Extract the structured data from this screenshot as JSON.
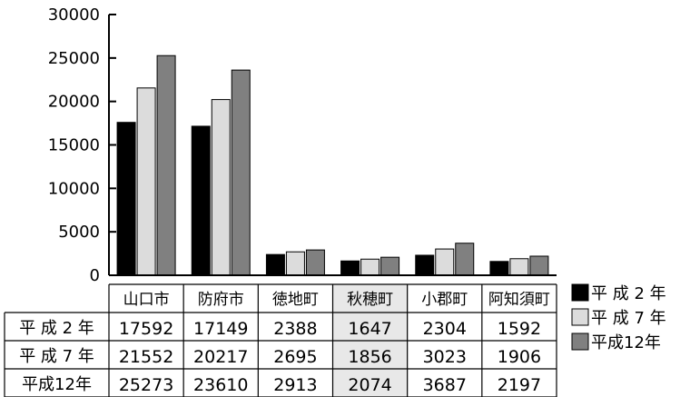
{
  "chart_data": {
    "type": "bar",
    "categories": [
      "山口市",
      "防府市",
      "徳地町",
      "秋穂町",
      "小郡町",
      "阿知須町"
    ],
    "series": [
      {
        "name": "平 成 2 年",
        "values": [
          17592,
          17149,
          2388,
          1647,
          2304,
          1592
        ],
        "color": "#000000"
      },
      {
        "name": "平 成 7 年",
        "values": [
          21552,
          20217,
          2695,
          1856,
          3023,
          1906
        ],
        "color": "#dcdcdc"
      },
      {
        "name": "平成12年",
        "values": [
          25273,
          23610,
          2913,
          2074,
          3687,
          2197
        ],
        "color": "#808080"
      }
    ],
    "table_row_labels": [
      "平 成 2 年",
      "平 成 7 年",
      "平成12年"
    ],
    "table_values": [
      [
        "17592",
        "17149",
        "2388",
        "1647",
        "2304",
        "1592"
      ],
      [
        "21552",
        "20217",
        "2695",
        "1856",
        "3023",
        "1906"
      ],
      [
        "25273",
        "23610",
        "2913",
        "2074",
        "3687",
        "2197"
      ]
    ],
    "highlighted_category": "秋穂町",
    "highlight_color": "#e8e8e8",
    "y_ticks": [
      "0",
      "5000",
      "10000",
      "15000",
      "20000",
      "25000",
      "30000"
    ],
    "ylim": [
      0,
      30000
    ],
    "legend_position": "right",
    "grid": false,
    "title": "",
    "xlabel": "",
    "ylabel": ""
  }
}
